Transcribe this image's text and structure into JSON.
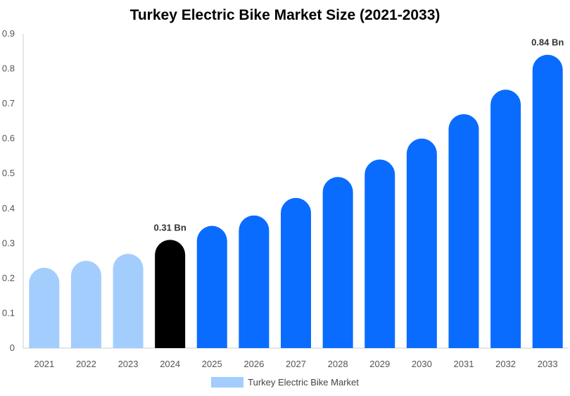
{
  "chart_data": {
    "type": "bar",
    "title": "Turkey Electric Bike Market Size (2021-2033)",
    "categories": [
      "2021",
      "2022",
      "2023",
      "2024",
      "2025",
      "2026",
      "2027",
      "2028",
      "2029",
      "2030",
      "2031",
      "2032",
      "2033"
    ],
    "series": [
      {
        "name": "Turkey Electric Bike Market",
        "values": [
          0.23,
          0.25,
          0.27,
          0.31,
          0.35,
          0.38,
          0.43,
          0.49,
          0.54,
          0.6,
          0.67,
          0.74,
          0.84
        ]
      }
    ],
    "data_labels": {
      "3": "0.31 Bn",
      "12": "0.84 Bn"
    },
    "bar_colors": {
      "historical": "#a3cdfd",
      "base_year": "#000000",
      "forecast": "#0a6cff"
    },
    "base_year_index": 3,
    "ylim": [
      0,
      0.9
    ],
    "yticks": [
      "0",
      "0.1",
      "0.2",
      "0.3",
      "0.4",
      "0.5",
      "0.6",
      "0.7",
      "0.8",
      "0.9"
    ],
    "grid": false,
    "legend_position": "bottom-center"
  }
}
